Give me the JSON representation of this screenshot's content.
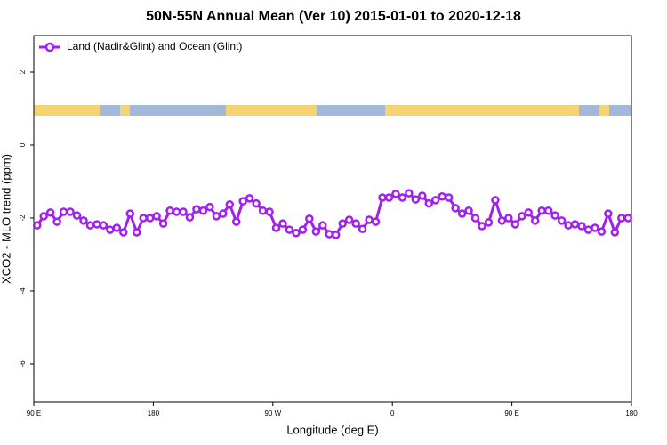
{
  "chart_data": {
    "type": "line",
    "title": "50N-55N Annual Mean (Ver 10)   2015-01-01 to 2020-12-18",
    "xlabel": "Longitude (deg E)",
    "ylabel": "XCO2 - MLO trend (ppm)",
    "legend": "top-left",
    "x": [
      92.5,
      97.5,
      102.5,
      107.5,
      112.5,
      117.5,
      122.5,
      127.5,
      132.5,
      137.5,
      142.5,
      147.5,
      152.5,
      157.5,
      162.5,
      167.5,
      172.5,
      177.5,
      182.5,
      187.5,
      192.5,
      197.5,
      202.5,
      207.5,
      212.5,
      217.5,
      222.5,
      227.5,
      232.5,
      237.5,
      242.5,
      247.5,
      252.5,
      257.5,
      262.5,
      267.5,
      272.5,
      277.5,
      282.5,
      287.5,
      292.5,
      297.5,
      302.5,
      307.5,
      312.5,
      317.5,
      322.5,
      327.5,
      332.5,
      337.5,
      342.5,
      347.5,
      352.5,
      357.5,
      362.5,
      367.5,
      372.5,
      377.5,
      382.5,
      387.5,
      392.5,
      397.5,
      402.5,
      407.5,
      412.5,
      417.5,
      422.5,
      427.5,
      432.5,
      437.5,
      442.5,
      447.5,
      452.5,
      457.5,
      462.5,
      467.5,
      472.5,
      477.5,
      482.5,
      487.5,
      492.5,
      497.5,
      502.5,
      507.5,
      512.5,
      517.5,
      522.5,
      527.5,
      532.5,
      537.5
    ],
    "series": [
      {
        "name": "Land (Nadir&Glint) and Ocean (Glint)",
        "color": "#a020f0",
        "values": [
          -2.2,
          -1.95,
          -1.85,
          -2.1,
          -1.83,
          -1.83,
          -1.93,
          -2.07,
          -2.2,
          -2.17,
          -2.2,
          -2.32,
          -2.27,
          -2.39,
          -1.88,
          -2.39,
          -2.0,
          -2.0,
          -1.95,
          -2.15,
          -1.8,
          -1.83,
          -1.83,
          -1.98,
          -1.76,
          -1.8,
          -1.7,
          -1.95,
          -1.88,
          -1.63,
          -2.1,
          -1.54,
          -1.46,
          -1.6,
          -1.8,
          -1.83,
          -2.27,
          -2.15,
          -2.32,
          -2.41,
          -2.32,
          -2.02,
          -2.37,
          -2.2,
          -2.44,
          -2.46,
          -2.15,
          -2.05,
          -2.15,
          -2.3,
          -2.05,
          -2.1,
          -1.44,
          -1.44,
          -1.34,
          -1.44,
          -1.32,
          -1.49,
          -1.39,
          -1.6,
          -1.51,
          -1.41,
          -1.44,
          -1.73,
          -1.88,
          -1.8,
          -2.0,
          -2.22,
          -2.12,
          -1.51,
          -2.07,
          -2.0,
          -2.17,
          -1.95,
          -1.85,
          -2.07,
          -1.8,
          -1.8,
          -1.93,
          -2.07,
          -2.2,
          -2.17,
          -2.22,
          -2.32,
          -2.27,
          -2.37,
          -1.88,
          -2.39,
          -2.0,
          -2.0
        ]
      }
    ],
    "xlim": [
      90,
      540
    ],
    "xticks": [
      {
        "value": 90,
        "label": "90 E"
      },
      {
        "value": 180,
        "label": "180"
      },
      {
        "value": 270,
        "label": "90 W"
      },
      {
        "value": 360,
        "label": "0"
      },
      {
        "value": 450,
        "label": "90 E"
      },
      {
        "value": 540,
        "label": "180"
      }
    ],
    "ylim": [
      -7.05,
      3
    ],
    "yticks": [
      2,
      0,
      -2,
      -4,
      -6
    ]
  }
}
